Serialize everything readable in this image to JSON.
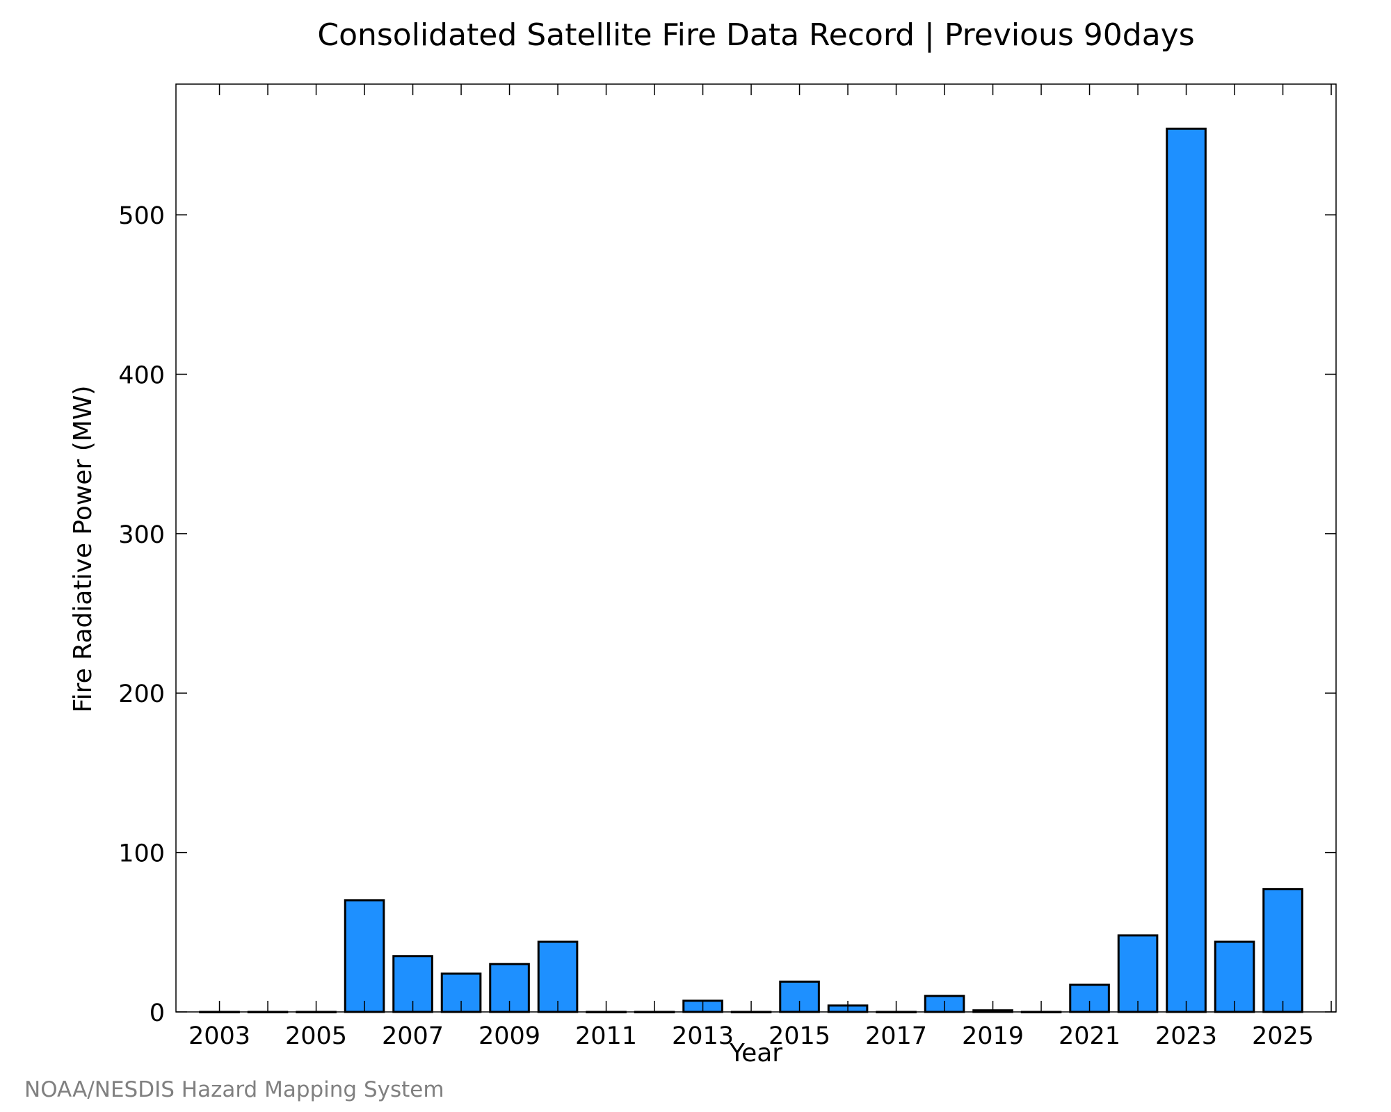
{
  "colors": {
    "bar_fill": "#1e90ff",
    "bar_stroke": "#000000",
    "axis": "#000000",
    "credit": "#808080"
  },
  "credit": "NOAA/NESDIS Hazard Mapping System",
  "chart_data": {
    "type": "bar",
    "title": "Consolidated Satellite Fire Data Record | Previous 90days",
    "xlabel": "Year",
    "ylabel": "Fire Radiative Power (MW)",
    "categories": [
      2003,
      2004,
      2005,
      2006,
      2007,
      2008,
      2009,
      2010,
      2011,
      2012,
      2013,
      2014,
      2015,
      2016,
      2017,
      2018,
      2019,
      2020,
      2021,
      2022,
      2023,
      2024,
      2025
    ],
    "values": [
      0,
      0,
      0,
      70,
      35,
      24,
      30,
      44,
      0,
      0,
      7,
      0,
      19,
      4,
      0,
      10,
      1,
      0,
      17,
      48,
      554,
      44,
      77
    ],
    "xlim": [
      2002.1,
      2026.1
    ],
    "ylim": [
      0,
      582
    ],
    "xticks": [
      2003,
      2005,
      2007,
      2009,
      2011,
      2013,
      2015,
      2017,
      2019,
      2021,
      2023,
      2025
    ],
    "xtick_labels": [
      "2003",
      "2005",
      "2007",
      "2009",
      "2011",
      "2013",
      "2015",
      "2017",
      "2019",
      "2021",
      "2023",
      "2025"
    ],
    "yticks": [
      0,
      100,
      200,
      300,
      400,
      500
    ],
    "ytick_labels": [
      "0",
      "100",
      "200",
      "300",
      "400",
      "500"
    ],
    "bar_width": 0.8,
    "grid": false,
    "legend": "none"
  }
}
